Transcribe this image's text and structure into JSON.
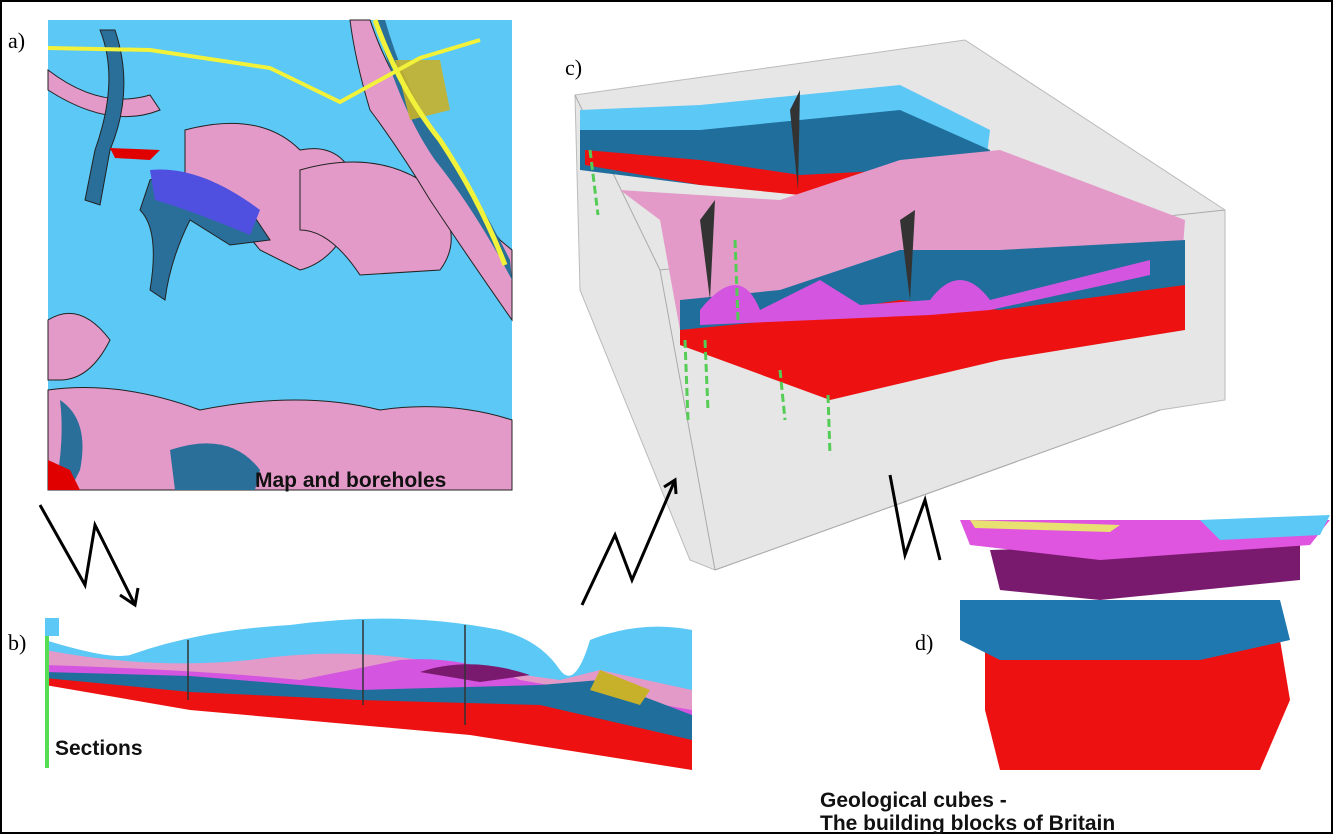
{
  "panels": [
    {
      "label": "a)",
      "caption": "Map and boreholes"
    },
    {
      "label": "b)",
      "caption": "Sections"
    },
    {
      "label": "c)"
    },
    {
      "label": "d)",
      "caption": [
        "Geological cubes -",
        "The building blocks of Britain"
      ]
    }
  ]
}
